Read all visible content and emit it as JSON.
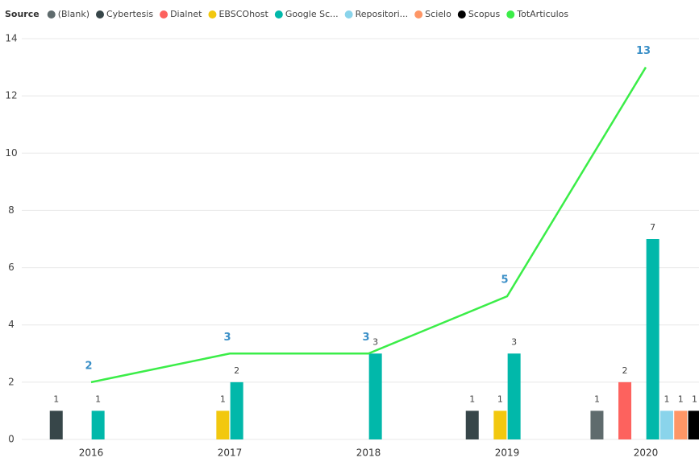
{
  "chart_data": {
    "type": "bar",
    "legend_title": "Source",
    "categories": [
      "2016",
      "2017",
      "2018",
      "2019",
      "2020"
    ],
    "series": [
      {
        "name": "(Blank)",
        "color": "#5f6b6d",
        "values": [
          null,
          null,
          null,
          null,
          1
        ]
      },
      {
        "name": "Cybertesis",
        "color": "#374649",
        "values": [
          1,
          null,
          null,
          1,
          null
        ]
      },
      {
        "name": "Dialnet",
        "color": "#fd625e",
        "values": [
          null,
          null,
          null,
          null,
          2
        ]
      },
      {
        "name": "EBSCOhost",
        "color": "#f2c80f",
        "values": [
          null,
          1,
          null,
          1,
          null
        ]
      },
      {
        "name": "Google Sc...",
        "color": "#01b8aa",
        "values": [
          1,
          2,
          3,
          3,
          7
        ]
      },
      {
        "name": "Repositori...",
        "color": "#8ad4eb",
        "values": [
          null,
          null,
          null,
          null,
          1
        ]
      },
      {
        "name": "Scielo",
        "color": "#fe9666",
        "values": [
          null,
          null,
          null,
          null,
          1
        ]
      },
      {
        "name": "Scopus",
        "color": "#000000",
        "values": [
          null,
          null,
          null,
          null,
          1
        ]
      },
      {
        "name": "TotArticulos",
        "color": "#3bed48",
        "type": "line",
        "values": [
          2,
          3,
          3,
          5,
          13
        ]
      }
    ],
    "ylim": [
      0,
      14
    ],
    "yticks": [
      0,
      2,
      4,
      6,
      8,
      10,
      12,
      14
    ],
    "grid": true,
    "legend": "top-left"
  }
}
